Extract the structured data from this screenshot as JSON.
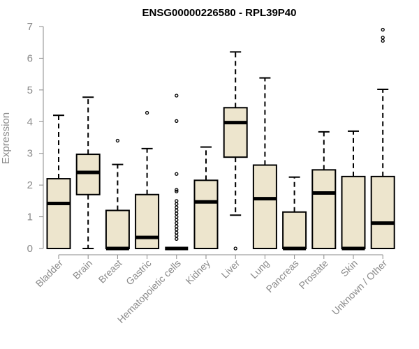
{
  "chart_data": {
    "type": "boxplot",
    "title": "ENSG00000226580 - RPL39P40",
    "ylabel": "Expression",
    "xlabel": "",
    "ylim": [
      0,
      7
    ],
    "yticks": [
      0,
      1,
      2,
      3,
      4,
      5,
      6,
      7
    ],
    "grid": false,
    "colors": {
      "box_fill": "#ede5cd",
      "stroke": "#000000",
      "axis_text": "#8a8a8a"
    },
    "categories": [
      "Bladder",
      "Brain",
      "Breast",
      "Gastric",
      "Hematopoietic cells",
      "Kidney",
      "Liver",
      "Lung",
      "Pancreas",
      "Prostate",
      "Skin",
      "Unknown / Other"
    ],
    "boxes": [
      {
        "whisker_low": 0,
        "q1": 0,
        "median": 1.42,
        "q3": 2.2,
        "whisker_high": 4.2,
        "outliers": []
      },
      {
        "whisker_low": 0,
        "q1": 1.7,
        "median": 2.4,
        "q3": 2.97,
        "whisker_high": 4.77,
        "outliers": []
      },
      {
        "whisker_low": 0,
        "q1": 0,
        "median": 0,
        "q3": 1.2,
        "whisker_high": 2.65,
        "outliers": [
          3.4
        ]
      },
      {
        "whisker_low": 0,
        "q1": 0,
        "median": 0.35,
        "q3": 1.7,
        "whisker_high": 3.15,
        "outliers": [
          4.28
        ]
      },
      {
        "whisker_low": 0,
        "q1": 0,
        "median": 0,
        "q3": 0,
        "whisker_high": 0,
        "outliers": [
          0.3,
          0.4,
          0.5,
          0.6,
          0.7,
          0.8,
          0.9,
          1.0,
          1.1,
          1.2,
          1.3,
          1.4,
          1.5,
          1.8,
          1.85,
          2.35,
          4.02,
          4.82
        ]
      },
      {
        "whisker_low": 0,
        "q1": 0,
        "median": 1.47,
        "q3": 2.15,
        "whisker_high": 3.2,
        "outliers": []
      },
      {
        "whisker_low": 1.05,
        "q1": 2.88,
        "median": 3.97,
        "q3": 4.44,
        "whisker_high": 6.2,
        "outliers": [
          0
        ]
      },
      {
        "whisker_low": 0,
        "q1": 0,
        "median": 1.57,
        "q3": 2.63,
        "whisker_high": 5.38,
        "outliers": []
      },
      {
        "whisker_low": 0,
        "q1": 0,
        "median": 0,
        "q3": 1.15,
        "whisker_high": 2.25,
        "outliers": []
      },
      {
        "whisker_low": 0,
        "q1": 0,
        "median": 1.75,
        "q3": 2.48,
        "whisker_high": 3.68,
        "outliers": []
      },
      {
        "whisker_low": 0,
        "q1": 0,
        "median": 0,
        "q3": 2.27,
        "whisker_high": 3.7,
        "outliers": []
      },
      {
        "whisker_low": 0,
        "q1": 0,
        "median": 0.8,
        "q3": 2.27,
        "whisker_high": 5.02,
        "outliers": [
          6.55,
          6.65,
          6.9
        ]
      }
    ]
  }
}
